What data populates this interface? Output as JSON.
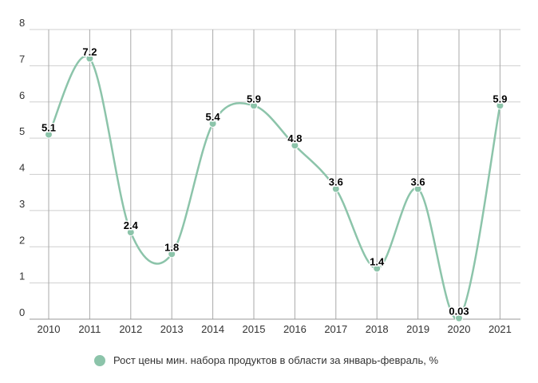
{
  "chart_data": {
    "type": "line",
    "smooth": true,
    "categories": [
      "2010",
      "2011",
      "2012",
      "2013",
      "2014",
      "2015",
      "2016",
      "2017",
      "2018",
      "2019",
      "2020",
      "2021"
    ],
    "series": [
      {
        "name": "Рост цены мин. набора продуктов в области за январь-февраль, %",
        "values": [
          5.1,
          7.2,
          2.4,
          1.8,
          5.4,
          5.9,
          4.8,
          3.6,
          1.4,
          3.6,
          0.03,
          5.9
        ],
        "labels": [
          "5.1",
          "7.2",
          "2.4",
          "1.8",
          "5.4",
          "5.9",
          "4.8",
          "3.6",
          "1.4",
          "3.6",
          "0.03",
          "5.9"
        ],
        "color": "#8cc4aa"
      }
    ],
    "yticks": [
      0,
      1,
      2,
      3,
      4,
      5,
      6,
      7,
      8
    ],
    "ylim": [
      0,
      8
    ],
    "grid": true,
    "legend": "bottom-center"
  }
}
